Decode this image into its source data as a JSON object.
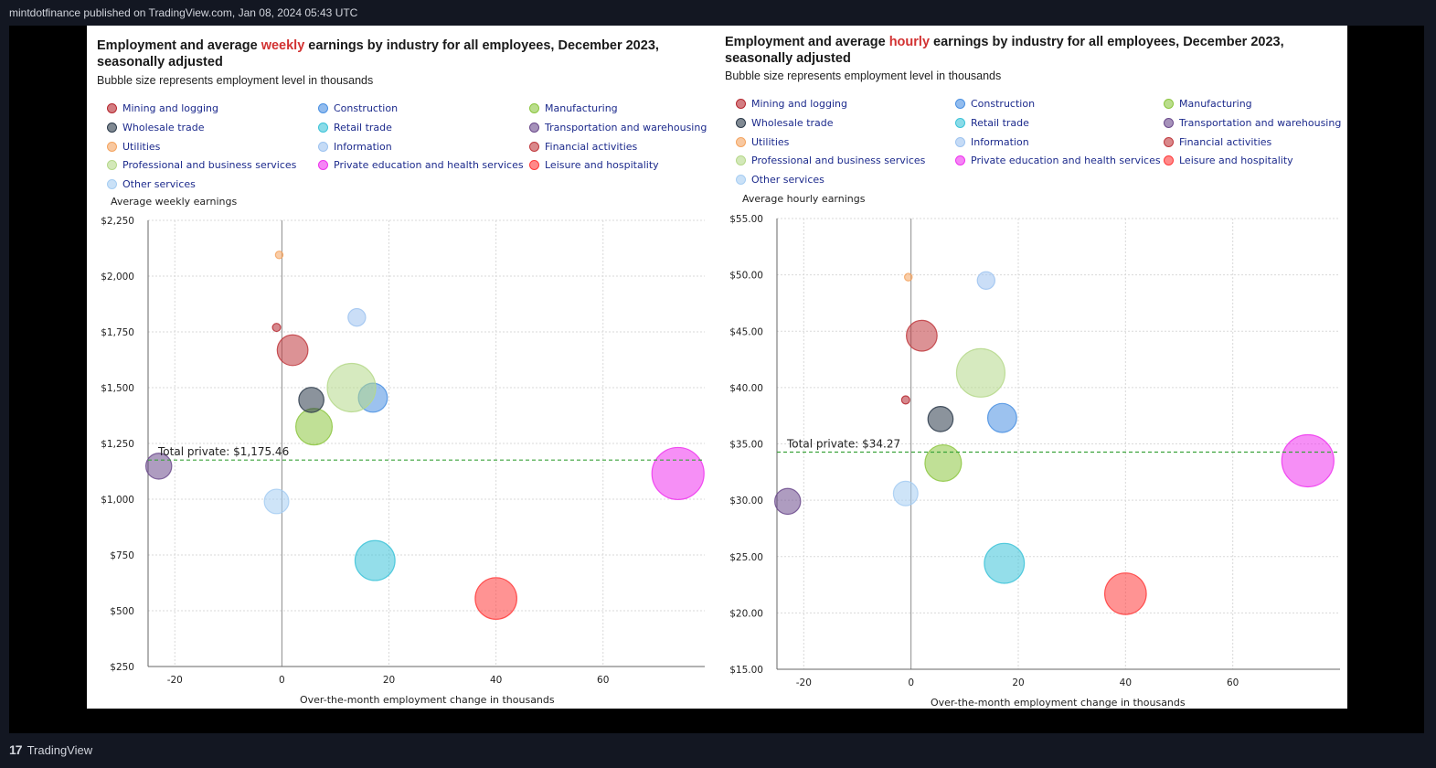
{
  "header": {
    "text": "mintdotfinance published on TradingView.com, Jan 08, 2024 05:43 UTC"
  },
  "footer": {
    "brand": "TradingView",
    "logo_glyph": "17"
  },
  "legend_items": [
    {
      "label": "Mining and logging",
      "color": "#b5272f"
    },
    {
      "label": "Construction",
      "color": "#4a90e2"
    },
    {
      "label": "Manufacturing",
      "color": "#8cc63f"
    },
    {
      "label": "Wholesale trade",
      "color": "#2b3a4a"
    },
    {
      "label": "Retail trade",
      "color": "#3cc3d8"
    },
    {
      "label": "Transportation and warehousing",
      "color": "#6b4a8c"
    },
    {
      "label": "Utilities",
      "color": "#f4a460"
    },
    {
      "label": "Information",
      "color": "#9ec3f0"
    },
    {
      "label": "Financial activities",
      "color": "#c0393e"
    },
    {
      "label": "Professional and business services",
      "color": "#b5d88a"
    },
    {
      "label": "Private education and health services",
      "color": "#ee33ee"
    },
    {
      "label": "Leisure and hospitality",
      "color": "#ff3a3a"
    },
    {
      "label": "Other services",
      "color": "#a6cdf2"
    }
  ],
  "charts": [
    {
      "title_pre": "Employment and average ",
      "title_hl": "weekly",
      "title_post": " earnings by industry for all employees, December 2023,",
      "title_line2": "seasonally adjusted",
      "subtitle": "Bubble size represents employment level in thousands"
    },
    {
      "title_pre": "Employment and average ",
      "title_hl": "hourly",
      "title_post": " earnings by industry for all employees, December 2023,",
      "title_line2": "seasonally adjusted",
      "subtitle": "Bubble size represents employment level in thousands"
    }
  ],
  "chart_data": [
    {
      "type": "scatter",
      "title": "Employment and average weekly earnings by industry for all employees, December 2023, seasonally adjusted",
      "subtitle": "Bubble size represents employment level in thousands",
      "xlabel": "Over-the-month employment change in thousands",
      "ylabel": "Average weekly earnings",
      "xlim": [
        -25,
        79
      ],
      "ylim": [
        250,
        2250
      ],
      "x_ticks": [
        -20,
        0,
        20,
        40,
        60
      ],
      "y_ticks": [
        250,
        500,
        750,
        1000,
        1250,
        1500,
        1750,
        2000,
        2250
      ],
      "y_tick_labels": [
        "$250",
        "$500",
        "$750",
        "$1,000",
        "$1,250",
        "$1,500",
        "$1,750",
        "$2,000",
        "$2,250"
      ],
      "x_tick_labels": [
        "-20",
        "0",
        "20",
        "40",
        "60"
      ],
      "grid": true,
      "reference_line": {
        "label": "Total private: $1,175.46",
        "value": 1175.46
      },
      "series": [
        {
          "name": "Mining and logging",
          "x": -1,
          "y": 1770,
          "size": 640,
          "color": "#b5272f"
        },
        {
          "name": "Construction",
          "x": 17,
          "y": 1455,
          "size": 8200,
          "color": "#4a90e2"
        },
        {
          "name": "Manufacturing",
          "x": 6,
          "y": 1325,
          "size": 12950,
          "color": "#8cc63f"
        },
        {
          "name": "Wholesale trade",
          "x": 5.5,
          "y": 1445,
          "size": 6150,
          "color": "#2b3a4a"
        },
        {
          "name": "Retail trade",
          "x": 17.4,
          "y": 725,
          "size": 15600,
          "color": "#3cc3d8"
        },
        {
          "name": "Transportation and warehousing",
          "x": -23,
          "y": 1148,
          "size": 6500,
          "color": "#6b4a8c"
        },
        {
          "name": "Utilities",
          "x": -0.5,
          "y": 2095,
          "size": 560,
          "color": "#f4a460"
        },
        {
          "name": "Information",
          "x": 14,
          "y": 1815,
          "size": 3000,
          "color": "#9ec3f0"
        },
        {
          "name": "Financial activities",
          "x": 2,
          "y": 1668,
          "size": 9200,
          "color": "#c0393e"
        },
        {
          "name": "Professional and business services",
          "x": 13,
          "y": 1500,
          "size": 22900,
          "color": "#b5d88a"
        },
        {
          "name": "Private education and health services",
          "x": 74,
          "y": 1115,
          "size": 26500,
          "color": "#ee33ee"
        },
        {
          "name": "Leisure and hospitality",
          "x": 40,
          "y": 555,
          "size": 16900,
          "color": "#ff3a3a"
        },
        {
          "name": "Other services",
          "x": -1,
          "y": 990,
          "size": 5850,
          "color": "#a6cdf2"
        }
      ]
    },
    {
      "type": "scatter",
      "title": "Employment and average hourly earnings by industry for all employees, December 2023, seasonally adjusted",
      "subtitle": "Bubble size represents employment level in thousands",
      "xlabel": "Over-the-month employment change in thousands",
      "ylabel": "Average hourly earnings",
      "xlim": [
        -25,
        80
      ],
      "ylim": [
        15,
        55
      ],
      "x_ticks": [
        -20,
        0,
        20,
        40,
        60
      ],
      "y_ticks": [
        15,
        20,
        25,
        30,
        35,
        40,
        45,
        50,
        55
      ],
      "y_tick_labels": [
        "$15.00",
        "$20.00",
        "$25.00",
        "$30.00",
        "$35.00",
        "$40.00",
        "$45.00",
        "$50.00",
        "$55.00"
      ],
      "x_tick_labels": [
        "-20",
        "0",
        "20",
        "40",
        "60"
      ],
      "grid": true,
      "reference_line": {
        "label": "Total private: $34.27",
        "value": 34.27
      },
      "series": [
        {
          "name": "Mining and logging",
          "x": -1,
          "y": 38.9,
          "size": 640,
          "color": "#b5272f"
        },
        {
          "name": "Construction",
          "x": 17,
          "y": 37.3,
          "size": 8200,
          "color": "#4a90e2"
        },
        {
          "name": "Manufacturing",
          "x": 6,
          "y": 33.3,
          "size": 12950,
          "color": "#8cc63f"
        },
        {
          "name": "Wholesale trade",
          "x": 5.5,
          "y": 37.2,
          "size": 6150,
          "color": "#2b3a4a"
        },
        {
          "name": "Retail trade",
          "x": 17.4,
          "y": 24.4,
          "size": 15600,
          "color": "#3cc3d8"
        },
        {
          "name": "Transportation and warehousing",
          "x": -23,
          "y": 29.9,
          "size": 6500,
          "color": "#6b4a8c"
        },
        {
          "name": "Utilities",
          "x": -0.5,
          "y": 49.8,
          "size": 560,
          "color": "#f4a460"
        },
        {
          "name": "Information",
          "x": 14,
          "y": 49.5,
          "size": 3000,
          "color": "#9ec3f0"
        },
        {
          "name": "Financial activities",
          "x": 2,
          "y": 44.6,
          "size": 9200,
          "color": "#c0393e"
        },
        {
          "name": "Professional and business services",
          "x": 13,
          "y": 41.3,
          "size": 22900,
          "color": "#b5d88a"
        },
        {
          "name": "Private education and health services",
          "x": 74,
          "y": 33.5,
          "size": 26500,
          "color": "#ee33ee"
        },
        {
          "name": "Leisure and hospitality",
          "x": 40,
          "y": 21.7,
          "size": 16900,
          "color": "#ff3a3a"
        },
        {
          "name": "Other services",
          "x": -1,
          "y": 30.6,
          "size": 5850,
          "color": "#a6cdf2"
        }
      ]
    }
  ]
}
